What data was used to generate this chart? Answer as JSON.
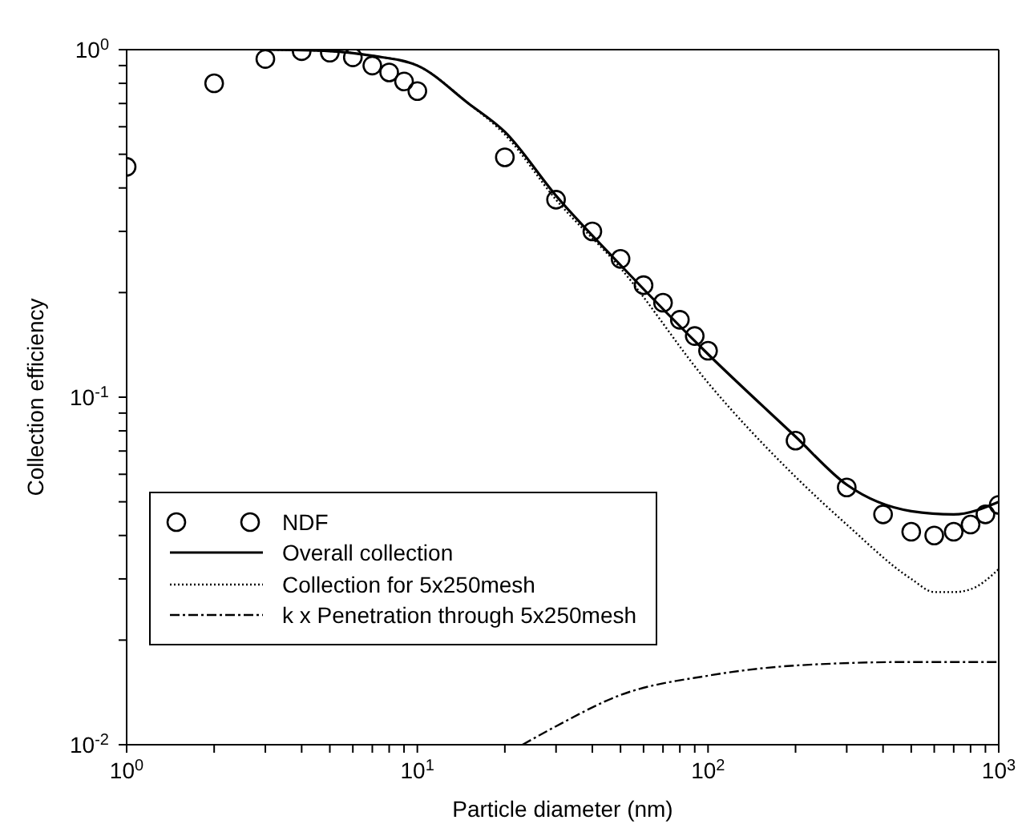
{
  "chart_data": {
    "type": "line",
    "xlabel": "Particle diameter (nm)",
    "ylabel": "Collection efficiency",
    "log": "xy",
    "xlim": [
      1,
      1000
    ],
    "ylim": [
      0.01,
      1
    ],
    "xticks": [
      {
        "value": 1,
        "label": "10$^{0}$"
      },
      {
        "value": 2,
        "label": null
      },
      {
        "value": 3,
        "label": null
      },
      {
        "value": 4,
        "label": null
      },
      {
        "value": 5,
        "label": null
      },
      {
        "value": 6,
        "label": null
      },
      {
        "value": 7,
        "label": null
      },
      {
        "value": 8,
        "label": null
      },
      {
        "value": 9,
        "label": null
      },
      {
        "value": 10,
        "label": "10$^{1}$"
      },
      {
        "value": 20,
        "label": null
      },
      {
        "value": 30,
        "label": null
      },
      {
        "value": 40,
        "label": null
      },
      {
        "value": 50,
        "label": null
      },
      {
        "value": 60,
        "label": null
      },
      {
        "value": 70,
        "label": null
      },
      {
        "value": 80,
        "label": null
      },
      {
        "value": 90,
        "label": null
      },
      {
        "value": 100,
        "label": "10$^{2}$"
      },
      {
        "value": 200,
        "label": null
      },
      {
        "value": 300,
        "label": null
      },
      {
        "value": 400,
        "label": null
      },
      {
        "value": 500,
        "label": null
      },
      {
        "value": 600,
        "label": null
      },
      {
        "value": 700,
        "label": null
      },
      {
        "value": 800,
        "label": null
      },
      {
        "value": 900,
        "label": null
      },
      {
        "value": 1000,
        "label": "10$^{3}$"
      }
    ],
    "yticks": [
      {
        "value": 0.01,
        "label": "10$^{-2}$"
      },
      {
        "value": 0.02,
        "label": null
      },
      {
        "value": 0.03,
        "label": null
      },
      {
        "value": 0.04,
        "label": null
      },
      {
        "value": 0.05,
        "label": null
      },
      {
        "value": 0.06,
        "label": null
      },
      {
        "value": 0.07,
        "label": null
      },
      {
        "value": 0.08,
        "label": null
      },
      {
        "value": 0.09,
        "label": null
      },
      {
        "value": 0.1,
        "label": "10$^{-1}$"
      },
      {
        "value": 0.2,
        "label": null
      },
      {
        "value": 0.3,
        "label": null
      },
      {
        "value": 0.4,
        "label": null
      },
      {
        "value": 0.5,
        "label": null
      },
      {
        "value": 0.6,
        "label": null
      },
      {
        "value": 0.7,
        "label": null
      },
      {
        "value": 0.8,
        "label": null
      },
      {
        "value": 0.9,
        "label": null
      },
      {
        "value": 1,
        "label": "10$^{0}$"
      }
    ],
    "grid": false,
    "legend": "left",
    "series": [
      {
        "name": "NDF",
        "type": "scatter",
        "marker": "circle",
        "color": "#000000",
        "x": [
          1,
          2,
          3,
          4,
          5,
          6,
          7,
          8,
          9,
          10,
          20,
          30,
          40,
          50,
          60,
          70,
          80,
          90,
          100,
          200,
          300,
          400,
          500,
          600,
          700,
          800,
          900,
          1000
        ],
        "values": [
          0.46,
          0.8,
          0.94,
          0.99,
          0.98,
          0.95,
          0.9,
          0.86,
          0.81,
          0.76,
          0.49,
          0.37,
          0.3,
          0.25,
          0.21,
          0.187,
          0.167,
          0.15,
          0.136,
          0.075,
          0.055,
          0.046,
          0.041,
          0.04,
          0.041,
          0.043,
          0.046,
          0.049
        ]
      },
      {
        "name": "Overall collection",
        "type": "line",
        "line_style": "solid",
        "color": "#000000",
        "x": [
          3,
          5,
          7,
          10,
          15,
          20,
          30,
          50,
          100,
          200,
          300,
          500,
          700,
          1000
        ],
        "values": [
          1.0,
          0.99,
          0.96,
          0.9,
          0.7,
          0.58,
          0.38,
          0.24,
          0.133,
          0.077,
          0.056,
          0.047,
          0.046,
          0.05
        ]
      },
      {
        "name": "Collection for 5x250mesh",
        "type": "line",
        "line_style": "dotted",
        "color": "#000000",
        "x": [
          3,
          5,
          7,
          10,
          15,
          20,
          30,
          50,
          100,
          200,
          300,
          500,
          600,
          700,
          800,
          1000
        ],
        "values": [
          1.0,
          0.99,
          0.96,
          0.9,
          0.7,
          0.57,
          0.37,
          0.235,
          0.11,
          0.059,
          0.043,
          0.03,
          0.0275,
          0.0275,
          0.028,
          0.032
        ]
      },
      {
        "name": "k x Penetration through 5x250mesh",
        "type": "line",
        "line_style": "dashed",
        "color": "#000000",
        "x": [
          23,
          30,
          50,
          100,
          200,
          500,
          1000
        ],
        "values": [
          0.01,
          0.0113,
          0.0139,
          0.0158,
          0.0169,
          0.0173,
          0.0173
        ]
      }
    ]
  }
}
